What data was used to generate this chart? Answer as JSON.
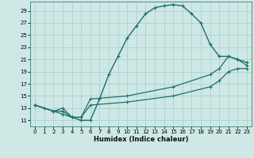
{
  "title": "",
  "xlabel": "Humidex (Indice chaleur)",
  "ylabel": "",
  "background_color": "#cde8e5",
  "grid_color": "#a8ceca",
  "line_color": "#1e6e6e",
  "xlim": [
    -0.5,
    23.5
  ],
  "ylim": [
    10.0,
    30.5
  ],
  "xticks": [
    0,
    1,
    2,
    3,
    4,
    5,
    6,
    7,
    8,
    9,
    10,
    11,
    12,
    13,
    14,
    15,
    16,
    17,
    18,
    19,
    20,
    21,
    22,
    23
  ],
  "yticks": [
    11,
    13,
    15,
    17,
    19,
    21,
    23,
    25,
    27,
    29
  ],
  "line1_x": [
    0,
    1,
    2,
    3,
    4,
    5,
    6,
    7,
    8,
    9,
    10,
    11,
    12,
    13,
    14,
    15,
    16,
    17,
    18,
    19,
    20,
    21,
    22,
    23
  ],
  "line1_y": [
    13.5,
    13.0,
    12.5,
    12.5,
    11.5,
    11.0,
    11.0,
    14.5,
    18.5,
    21.5,
    24.5,
    26.5,
    28.5,
    29.5,
    29.8,
    30.0,
    29.8,
    28.5,
    27.0,
    23.5,
    21.5,
    21.5,
    21.0,
    20.5
  ],
  "line2_x": [
    0,
    2,
    3,
    4,
    5,
    6,
    10,
    15,
    19,
    20,
    21,
    22,
    23
  ],
  "line2_y": [
    13.5,
    12.5,
    13.0,
    11.5,
    11.5,
    14.5,
    15.0,
    16.5,
    18.5,
    19.5,
    21.5,
    21.0,
    20.0
  ],
  "line3_x": [
    0,
    2,
    3,
    4,
    5,
    6,
    10,
    15,
    19,
    20,
    21,
    22,
    23
  ],
  "line3_y": [
    13.5,
    12.5,
    12.0,
    11.5,
    11.5,
    13.5,
    14.0,
    15.0,
    16.5,
    17.5,
    19.0,
    19.5,
    19.5
  ]
}
